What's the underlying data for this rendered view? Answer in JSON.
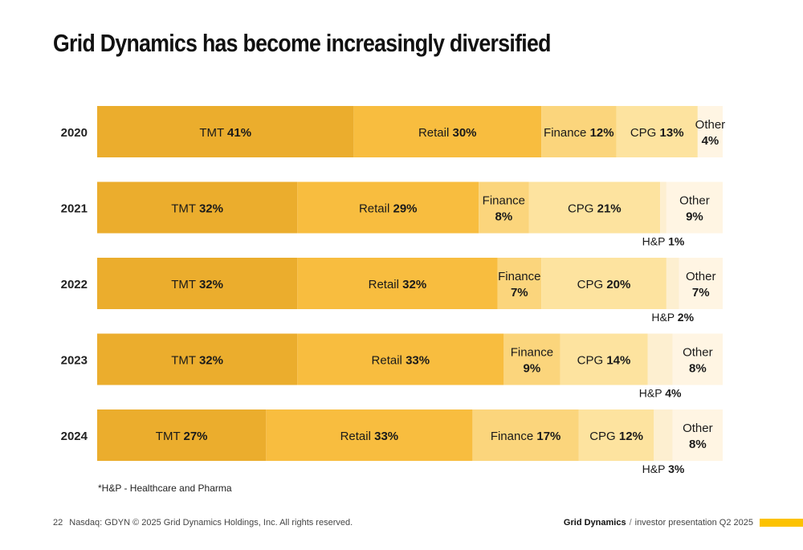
{
  "title": "Grid Dynamics has become increasingly diversified",
  "footnote": "*H&P - Healthcare and Pharma",
  "footer": {
    "page_number": "22",
    "copyright": "Nasdaq: GDYN © 2025 Grid Dynamics Holdings, Inc. All rights reserved.",
    "brand": "Grid Dynamics",
    "separator": "/",
    "presentation": "investor presentation Q2 2025"
  },
  "colors": {
    "TMT": "#ebad2d",
    "Retail": "#f8bd3f",
    "Finance": "#fbd57c",
    "CPG": "#fde39f",
    "H&P": "#fdefd0",
    "Other": "#fff5e3",
    "accent": "#fcc200"
  },
  "chart_data": {
    "type": "bar",
    "orientation": "horizontal",
    "stacked": true,
    "categories": [
      "2020",
      "2021",
      "2022",
      "2023",
      "2024"
    ],
    "series": [
      {
        "name": "TMT",
        "values": [
          41,
          32,
          32,
          32,
          27
        ]
      },
      {
        "name": "Retail",
        "values": [
          30,
          29,
          32,
          33,
          33
        ]
      },
      {
        "name": "Finance",
        "values": [
          12,
          8,
          7,
          9,
          17
        ]
      },
      {
        "name": "CPG",
        "values": [
          13,
          21,
          20,
          14,
          12
        ]
      },
      {
        "name": "H&P",
        "values": [
          0,
          1,
          2,
          4,
          3
        ]
      },
      {
        "name": "Other",
        "values": [
          4,
          9,
          7,
          8,
          8
        ]
      }
    ],
    "title": "",
    "xlabel": "",
    "ylabel": "",
    "grid": false,
    "legend": "none"
  }
}
